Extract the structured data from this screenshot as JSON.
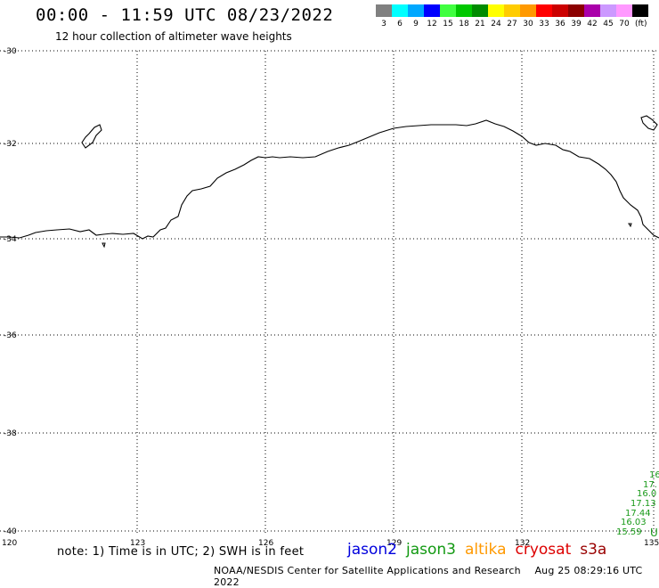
{
  "header": {
    "title": "00:00 - 11:59 UTC 08/23/2022",
    "subtitle": "12 hour collection of altimeter wave heights"
  },
  "legend": {
    "units": "(ft)",
    "items": [
      {
        "label": "3",
        "color": "#808080"
      },
      {
        "label": "6",
        "color": "#00ffff"
      },
      {
        "label": "9",
        "color": "#00a8ff"
      },
      {
        "label": "12",
        "color": "#0000ff"
      },
      {
        "label": "15",
        "color": "#40ff40"
      },
      {
        "label": "18",
        "color": "#00c800"
      },
      {
        "label": "21",
        "color": "#008c00"
      },
      {
        "label": "24",
        "color": "#ffff00"
      },
      {
        "label": "27",
        "color": "#ffcc00"
      },
      {
        "label": "30",
        "color": "#ff9900"
      },
      {
        "label": "33",
        "color": "#ff0000"
      },
      {
        "label": "36",
        "color": "#cc0000"
      },
      {
        "label": "39",
        "color": "#8b0000"
      },
      {
        "label": "42",
        "color": "#aa00aa"
      },
      {
        "label": "45",
        "color": "#cc99ff"
      },
      {
        "label": "70",
        "color": "#ff99ff"
      },
      {
        "label": "",
        "color": "#000000"
      }
    ]
  },
  "axes": {
    "lat_labels": [
      "-30",
      "-32",
      "-34",
      "-36",
      "-38",
      "-40"
    ],
    "lon_labels": [
      "120",
      "123",
      "126",
      "129",
      "132",
      "135"
    ]
  },
  "observations": {
    "color": "#1a9a1a",
    "values": [
      "16",
      "17.",
      "16.0",
      "17.13",
      "17.44",
      "16.03",
      "15.59"
    ],
    "marker": "U"
  },
  "footer": {
    "note": "note: 1) Time is in UTC; 2) SWH is in feet",
    "satellites": [
      {
        "name": "jason2",
        "color": "#0000dd"
      },
      {
        "name": "jason3",
        "color": "#119911"
      },
      {
        "name": "altika",
        "color": "#ff9900"
      },
      {
        "name": "cryosat",
        "color": "#dd0000"
      },
      {
        "name": "s3a",
        "color": "#990000"
      }
    ],
    "credit": "NOAA/NESDIS Center for Satellite Applications and Research",
    "timestamp": "Aug 25 08:29:16 UTC 2022"
  }
}
